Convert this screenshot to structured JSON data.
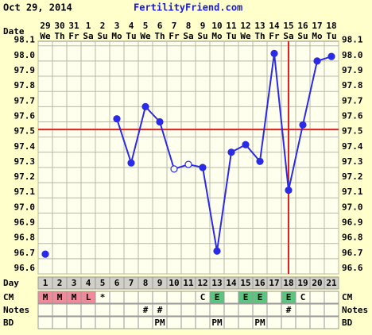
{
  "chart_data": {
    "type": "line",
    "title": "Oct 29, 2014",
    "subtitle": "FertilityFriend.com",
    "row_labels": {
      "date": "Date",
      "day": "Day",
      "cm": "CM",
      "notes": "Notes",
      "bd": "BD"
    },
    "dates": [
      "29",
      "30",
      "31",
      "1",
      "2",
      "3",
      "4",
      "5",
      "6",
      "7",
      "8",
      "9",
      "10",
      "11",
      "12",
      "13",
      "14",
      "15",
      "16",
      "17",
      "18"
    ],
    "weekdays": [
      "We",
      "Th",
      "Fr",
      "Sa",
      "Su",
      "Mo",
      "Tu",
      "We",
      "Th",
      "Fr",
      "Sa",
      "Su",
      "Mo",
      "Tu",
      "We",
      "Th",
      "Fr",
      "Sa",
      "Su",
      "Mo",
      "Tu"
    ],
    "categories": [
      "1",
      "2",
      "3",
      "4",
      "5",
      "6",
      "7",
      "8",
      "9",
      "10",
      "11",
      "12",
      "13",
      "14",
      "15",
      "16",
      "17",
      "18",
      "19",
      "20",
      "21"
    ],
    "values": [
      96.73,
      null,
      null,
      null,
      null,
      97.62,
      97.33,
      97.7,
      97.6,
      97.29,
      97.32,
      97.3,
      96.75,
      97.4,
      97.45,
      97.34,
      98.05,
      97.15,
      97.58,
      98.0,
      98.03
    ],
    "hollow": [
      false,
      false,
      false,
      false,
      false,
      false,
      false,
      false,
      false,
      true,
      true,
      false,
      false,
      false,
      false,
      false,
      false,
      false,
      false,
      false,
      false
    ],
    "color": "#2a2ae8",
    "coverline": 97.55,
    "ovulation_day": "18",
    "reference_color": "#e02020",
    "ylim": [
      96.6,
      98.13
    ],
    "yticks": [
      96.6,
      96.7,
      96.8,
      96.9,
      {
        "value": 97.0,
        "label": "97.0"
      },
      97.1,
      97.2,
      97.3,
      97.4,
      97.5,
      97.6,
      97.7,
      97.8,
      97.9,
      {
        "value": 98.0,
        "label": "98.0"
      },
      98.1
    ],
    "grid": true,
    "cm": [
      "M",
      "M",
      "M",
      "L",
      "*",
      null,
      null,
      null,
      null,
      null,
      null,
      "C",
      "E",
      null,
      "E",
      "E",
      null,
      "E",
      "C",
      null,
      null
    ],
    "cm_colors": {
      "M": "#f08a9a",
      "L": "#f08a9a",
      "E": "#5cc47e"
    },
    "notes": [
      null,
      null,
      null,
      null,
      null,
      null,
      null,
      "#",
      "#",
      null,
      null,
      null,
      null,
      null,
      null,
      null,
      null,
      "#",
      null,
      null,
      null
    ],
    "bd": [
      null,
      null,
      null,
      null,
      null,
      null,
      null,
      null,
      "PM",
      null,
      null,
      null,
      "PM",
      null,
      null,
      "PM",
      null,
      null,
      null,
      null,
      null
    ]
  }
}
